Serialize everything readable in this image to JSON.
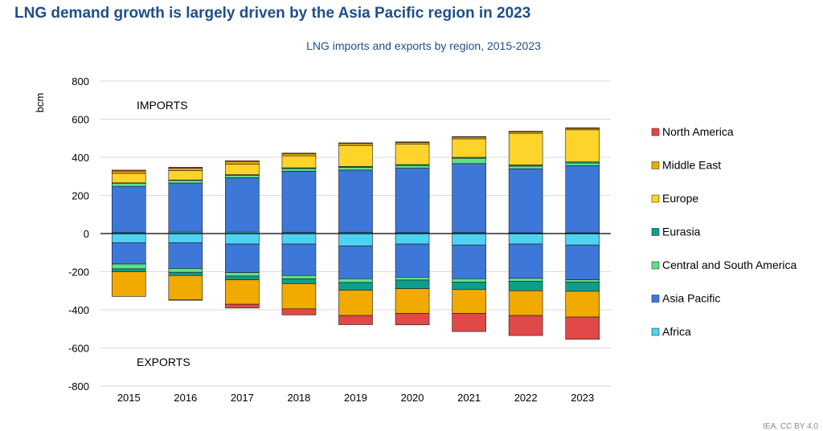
{
  "header": {
    "title": "LNG demand growth is largely driven by the Asia Pacific region in 2023",
    "subtitle": "LNG imports and exports by region, 2015-2023"
  },
  "footer": {
    "source": "IEA. CC BY 4.0"
  },
  "chart_data": {
    "type": "bar",
    "stacked": true,
    "title": "LNG imports and exports by region, 2015-2023",
    "ylabel": "bcm",
    "xlabel": "",
    "ylim": [
      -800,
      800
    ],
    "yticks": [
      800,
      600,
      400,
      200,
      0,
      -200,
      -400,
      -600,
      -800
    ],
    "grid": true,
    "legend_position": "right",
    "annotations": {
      "imports": "IMPORTS",
      "exports": "EXPORTS"
    },
    "categories": [
      "2015",
      "2016",
      "2017",
      "2018",
      "2019",
      "2020",
      "2021",
      "2022",
      "2023"
    ],
    "import_series": [
      {
        "name": "Africa",
        "color": "#4dd2f2",
        "values": [
          5,
          8,
          8,
          6,
          6,
          5,
          5,
          4,
          4
        ]
      },
      {
        "name": "Asia Pacific",
        "color": "#3d78d8",
        "values": [
          243,
          257,
          285,
          321,
          327,
          338,
          362,
          336,
          352
        ]
      },
      {
        "name": "Central and South America",
        "color": "#5fe08a",
        "values": [
          16,
          14,
          13,
          14,
          14,
          14,
          28,
          14,
          14
        ]
      },
      {
        "name": "Eurasia",
        "color": "#0e9e8c",
        "values": [
          2,
          2,
          3,
          4,
          5,
          5,
          5,
          6,
          6
        ]
      },
      {
        "name": "Europe",
        "color": "#ffd42a",
        "values": [
          50,
          50,
          55,
          63,
          110,
          108,
          97,
          166,
          168
        ]
      },
      {
        "name": "Middle East",
        "color": "#f0aa00",
        "values": [
          12,
          12,
          14,
          10,
          10,
          8,
          9,
          8,
          8
        ]
      },
      {
        "name": "North America",
        "color": "#e14848",
        "values": [
          5,
          5,
          4,
          4,
          4,
          3,
          3,
          3,
          3
        ]
      }
    ],
    "export_series": [
      {
        "name": "Africa",
        "color": "#4dd2f2",
        "values": [
          -48,
          -48,
          -55,
          -55,
          -65,
          -55,
          -60,
          -55,
          -60
        ]
      },
      {
        "name": "Asia Pacific",
        "color": "#3d78d8",
        "values": [
          -112,
          -135,
          -150,
          -165,
          -172,
          -174,
          -177,
          -180,
          -183
        ]
      },
      {
        "name": "Central and South America",
        "color": "#5fe08a",
        "values": [
          -25,
          -20,
          -18,
          -18,
          -20,
          -15,
          -17,
          -15,
          -12
        ]
      },
      {
        "name": "Eurasia",
        "color": "#0e9e8c",
        "values": [
          -15,
          -17,
          -20,
          -25,
          -40,
          -45,
          -40,
          -50,
          -48
        ]
      },
      {
        "name": "Middle East",
        "color": "#f0aa00",
        "values": [
          -130,
          -128,
          -128,
          -132,
          -133,
          -130,
          -125,
          -130,
          -135
        ]
      },
      {
        "name": "North America",
        "color": "#e14848",
        "values": [
          0,
          -2,
          -20,
          -32,
          -48,
          -60,
          -95,
          -105,
          -117
        ]
      }
    ],
    "legend": [
      {
        "name": "North America",
        "color": "#e14848"
      },
      {
        "name": "Middle East",
        "color": "#f0aa00"
      },
      {
        "name": "Europe",
        "color": "#ffd42a"
      },
      {
        "name": "Eurasia",
        "color": "#0e9e8c"
      },
      {
        "name": "Central and South America",
        "color": "#5fe08a"
      },
      {
        "name": "Asia Pacific",
        "color": "#3d78d8"
      },
      {
        "name": "Africa",
        "color": "#4dd2f2"
      }
    ]
  }
}
